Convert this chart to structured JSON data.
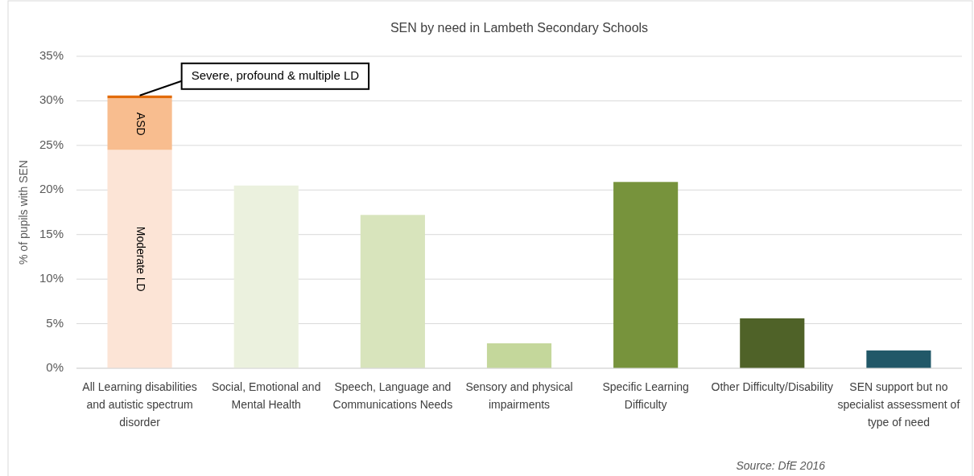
{
  "chart_data": {
    "type": "bar",
    "title": "SEN by need in Lambeth Secondary Schools",
    "ylabel": "% of pupils with SEN",
    "stacked": true,
    "grid": "y",
    "categories": [
      "All Learning disabilities and autistic spectrum disorder",
      "Social, Emotional and Mental Health",
      "Speech, Language and Communications Needs",
      "Sensory and physical impairments",
      "Specific Learning Difficulty",
      "Other Difficulty/Disability",
      "SEN support but no specialist assessment of type of need"
    ],
    "series": [
      {
        "name": "Moderate LD",
        "colors": [
          "#fce4d6",
          "#ebf1de",
          "#d8e4bc",
          "#c4d79b",
          "#77933c",
          "#4f6228",
          "#215868"
        ],
        "values": [
          24.5,
          20.5,
          17.2,
          2.8,
          20.9,
          5.6,
          2.0
        ]
      },
      {
        "name": "ASD",
        "color": "#f8bd8f",
        "values": [
          5.8,
          null,
          null,
          null,
          null,
          null,
          null
        ]
      },
      {
        "name": "Severe, profound & multiple LD",
        "color": "#e26b0a",
        "values": [
          0.3,
          null,
          null,
          null,
          null,
          null,
          null
        ]
      }
    ],
    "ylim": [
      0,
      35
    ],
    "yticks": [
      {
        "value": 0,
        "label": "0%"
      },
      {
        "value": 5,
        "label": "5%"
      },
      {
        "value": 10,
        "label": "10%"
      },
      {
        "value": 15,
        "label": "15%"
      },
      {
        "value": 20,
        "label": "20%"
      },
      {
        "value": 25,
        "label": "25%"
      },
      {
        "value": 30,
        "label": "30%"
      },
      {
        "value": 35,
        "label": "35%"
      }
    ],
    "annotations": [
      "Source: DfE 2016"
    ]
  }
}
